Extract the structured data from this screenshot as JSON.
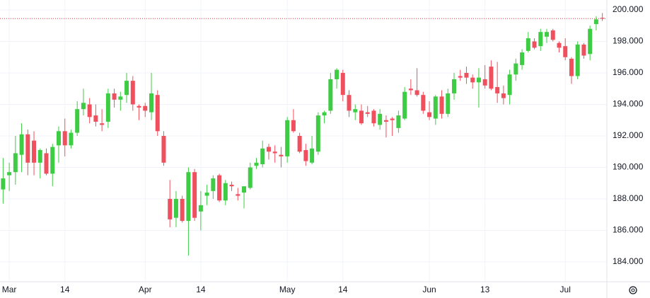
{
  "chart_data": {
    "type": "candlestick",
    "categories": [
      null,
      "Mar",
      null,
      null,
      null,
      null,
      null,
      null,
      null,
      null,
      "14",
      null,
      null,
      null,
      null,
      null,
      null,
      null,
      null,
      null,
      null,
      null,
      null,
      "Apr",
      null,
      null,
      null,
      null,
      null,
      null,
      null,
      null,
      "14",
      null,
      null,
      null,
      null,
      null,
      null,
      null,
      null,
      null,
      null,
      null,
      null,
      null,
      "May",
      null,
      null,
      null,
      null,
      null,
      null,
      null,
      null,
      "14",
      null,
      null,
      null,
      null,
      null,
      null,
      null,
      null,
      null,
      null,
      null,
      null,
      null,
      "Jun",
      null,
      null,
      null,
      null,
      null,
      null,
      null,
      null,
      "13",
      null,
      null,
      null,
      null,
      null,
      null,
      null,
      null,
      null,
      null,
      null,
      null,
      "Jul",
      null,
      null,
      null,
      null,
      null,
      null
    ],
    "open": [
      188.6,
      189.5,
      189.7,
      190.8,
      192.1,
      191.7,
      190.3,
      190.9,
      189.6,
      191.4,
      192.3,
      191.4,
      192.2,
      193.7,
      194.0,
      193.3,
      192.8,
      192.9,
      194.7,
      194.3,
      194.6,
      195.5,
      193.9,
      193.9,
      193.5,
      194.6,
      192.0,
      188.0,
      186.8,
      188.0,
      186.6,
      189.7,
      187.2,
      188.2,
      188.5,
      189.5,
      187.9,
      188.9,
      188.3,
      188.4,
      188.7,
      190.1,
      190.2,
      191.3,
      191.0,
      190.8,
      190.7,
      193.0,
      192.0,
      191.1,
      190.3,
      191.0,
      193.3,
      193.6,
      195.6,
      196.0,
      194.6,
      193.5,
      193.6,
      193.5,
      193.6,
      192.7,
      193.0,
      193.1,
      192.5,
      193.1,
      195.0,
      194.9,
      194.6,
      193.5,
      193.1,
      194.5,
      193.4,
      194.7,
      195.8,
      196.0,
      195.7,
      195.4,
      195.6,
      196.4,
      195.1,
      194.7,
      194.6,
      195.9,
      196.5,
      197.4,
      198.0,
      197.7,
      198.3,
      198.7,
      197.9,
      197.7,
      196.9,
      195.8,
      197.8,
      197.2,
      199.1,
      199.5
    ],
    "high": [
      190.6,
      190.3,
      192.0,
      192.8,
      192.4,
      192.3,
      191.2,
      191.2,
      191.5,
      192.6,
      193.1,
      192.4,
      194.2,
      195.0,
      194.4,
      194.0,
      193.7,
      195.0,
      195.0,
      194.8,
      196.0,
      195.8,
      194.0,
      194.1,
      196.0,
      194.9,
      192.3,
      189.2,
      188.5,
      188.2,
      190.0,
      189.9,
      188.5,
      188.9,
      189.5,
      189.6,
      189.2,
      189.1,
      188.7,
      188.8,
      190.3,
      190.6,
      191.7,
      191.5,
      191.4,
      191.3,
      193.2,
      193.7,
      192.2,
      191.5,
      192.0,
      193.5,
      193.6,
      196.0,
      196.3,
      196.2,
      194.9,
      194.0,
      194.0,
      193.9,
      193.7,
      193.7,
      193.3,
      193.2,
      193.6,
      195.1,
      195.6,
      196.3,
      194.8,
      194.2,
      194.6,
      194.9,
      195.0,
      196.0,
      196.2,
      196.4,
      195.9,
      196.3,
      196.5,
      196.8,
      196.7,
      195.2,
      196.2,
      196.9,
      197.5,
      198.6,
      198.2,
      198.8,
      198.8,
      198.8,
      198.0,
      198.2,
      197.0,
      198.0,
      197.9,
      199.0,
      199.6,
      199.8
    ],
    "low": [
      187.7,
      188.5,
      188.9,
      189.7,
      189.5,
      189.5,
      189.3,
      189.5,
      188.8,
      190.3,
      190.7,
      191.2,
      192.0,
      193.3,
      192.8,
      192.6,
      192.3,
      192.5,
      193.8,
      193.6,
      194.1,
      193.6,
      193.0,
      193.2,
      193.0,
      192.0,
      190.1,
      186.2,
      186.2,
      186.5,
      184.4,
      186.6,
      186.0,
      187.6,
      188.0,
      187.8,
      187.6,
      188.5,
      187.9,
      187.4,
      188.6,
      189.9,
      190.0,
      190.5,
      190.3,
      190.0,
      190.3,
      192.2,
      190.9,
      190.1,
      190.2,
      190.8,
      192.8,
      193.4,
      195.0,
      194.2,
      193.2,
      193.0,
      192.7,
      193.2,
      192.6,
      192.4,
      191.9,
      192.0,
      192.2,
      193.0,
      194.6,
      194.5,
      193.4,
      193.0,
      192.7,
      193.1,
      193.2,
      194.3,
      195.5,
      195.3,
      195.0,
      193.8,
      195.0,
      194.9,
      194.1,
      194.0,
      194.0,
      195.5,
      196.2,
      197.3,
      197.5,
      197.4,
      197.9,
      198.0,
      197.3,
      196.8,
      195.3,
      195.6,
      196.9,
      196.8,
      198.7,
      199.3
    ],
    "close": [
      189.3,
      189.7,
      190.9,
      192.1,
      190.3,
      190.3,
      191.1,
      189.6,
      191.3,
      192.3,
      191.4,
      192.2,
      193.7,
      194.1,
      193.2,
      192.9,
      192.7,
      194.7,
      194.3,
      194.5,
      195.5,
      194.0,
      193.8,
      193.6,
      194.7,
      192.3,
      190.3,
      186.7,
      188.0,
      186.6,
      189.7,
      186.8,
      187.6,
      188.4,
      189.3,
      187.9,
      189.0,
      188.8,
      188.2,
      188.8,
      190.0,
      190.3,
      191.2,
      191.0,
      190.9,
      190.7,
      193.0,
      192.3,
      191.0,
      190.4,
      191.2,
      193.3,
      193.5,
      195.6,
      196.2,
      194.6,
      193.6,
      193.7,
      192.8,
      193.4,
      192.8,
      193.4,
      192.9,
      193.0,
      193.3,
      194.8,
      194.9,
      194.6,
      193.6,
      193.2,
      194.5,
      193.4,
      194.7,
      195.6,
      195.7,
      195.7,
      195.4,
      195.7,
      195.2,
      195.0,
      194.7,
      194.4,
      195.9,
      196.6,
      197.3,
      198.2,
      197.6,
      198.6,
      198.6,
      198.1,
      197.6,
      197.0,
      195.8,
      197.8,
      197.1,
      198.8,
      199.4,
      199.45
    ],
    "last_price": 199.45,
    "up_color": "#3fcc45",
    "down_color": "#f0505e",
    "last_price_color": "#f23645",
    "ylim": [
      182.74,
      200.63
    ],
    "yticks": [
      {
        "value": 184,
        "label": "184.000"
      },
      {
        "value": 186,
        "label": "186.000"
      },
      {
        "value": 188,
        "label": "188.000"
      },
      {
        "value": 190,
        "label": "190.000"
      },
      {
        "value": 192,
        "label": "192.000"
      },
      {
        "value": 194,
        "label": "194.000"
      },
      {
        "value": 196,
        "label": "196.000"
      },
      {
        "value": 198,
        "label": "198.000"
      },
      {
        "value": 200,
        "label": "200.000"
      }
    ],
    "grid": true
  }
}
